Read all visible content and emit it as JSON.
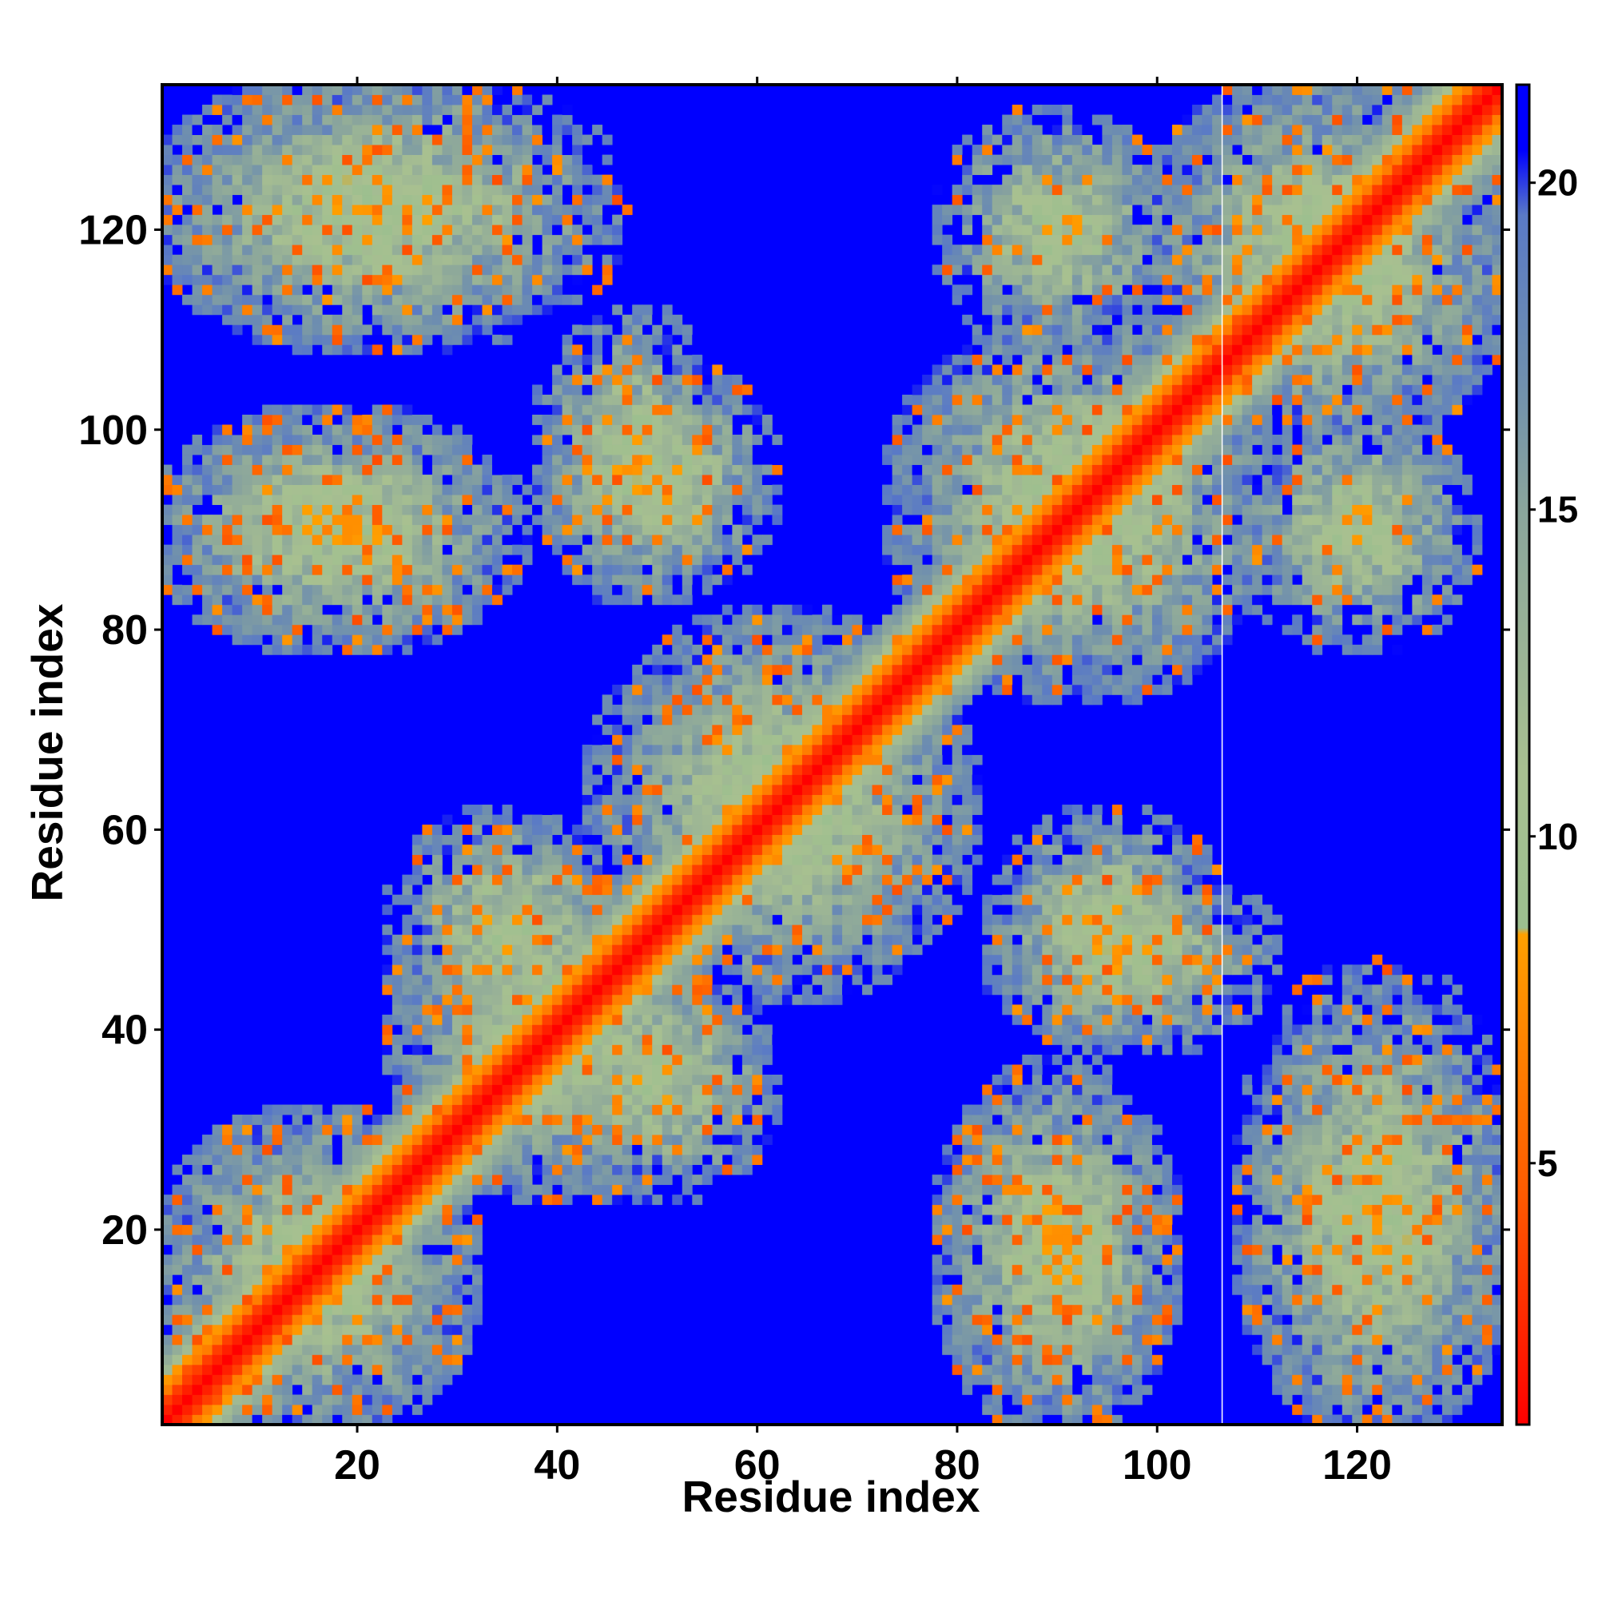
{
  "chart_data": {
    "type": "heatmap",
    "title": "",
    "xlabel": "Residue index",
    "ylabel": "Residue index",
    "n_residues": 134,
    "x_range": [
      1,
      134
    ],
    "y_range": [
      1,
      134
    ],
    "x_ticks": [
      20,
      40,
      60,
      80,
      100,
      120
    ],
    "y_ticks": [
      20,
      40,
      60,
      80,
      100,
      120
    ],
    "x_tick_labels": [
      "20",
      "40",
      "60",
      "80",
      "100",
      "120"
    ],
    "y_tick_labels": [
      "20",
      "40",
      "60",
      "80",
      "100",
      "120"
    ],
    "colorbar": {
      "range": [
        1,
        21.5
      ],
      "ticks": [
        5,
        10,
        15,
        20
      ],
      "tick_labels": [
        "5",
        "10",
        "15",
        "20"
      ],
      "position": "right",
      "stops": [
        {
          "value": 1,
          "color": "#ff0000"
        },
        {
          "value": 4.5,
          "color": "#ff5a00"
        },
        {
          "value": 8.5,
          "color": "#ffa000"
        },
        {
          "value": 8.6,
          "color": "#9cbf8f"
        },
        {
          "value": 11,
          "color": "#a8c090"
        },
        {
          "value": 15,
          "color": "#8aa59c"
        },
        {
          "value": 17,
          "color": "#6f8fae"
        },
        {
          "value": 19.5,
          "color": "#5a7ac6"
        },
        {
          "value": 20.5,
          "color": "#0000ff"
        }
      ]
    },
    "cutoff_value": 21,
    "cutoff_color": "#0000ff",
    "diagonal_band": {
      "core_width": 2,
      "orange_width": 4
    },
    "contact_regions": [
      {
        "x": [
          1,
          30
        ],
        "y": [
          1,
          30
        ]
      },
      {
        "x": [
          25,
          55
        ],
        "y": [
          25,
          55
        ]
      },
      {
        "x": [
          45,
          80
        ],
        "y": [
          45,
          80
        ]
      },
      {
        "x": [
          75,
          110
        ],
        "y": [
          75,
          110
        ]
      },
      {
        "x": [
          100,
          134
        ],
        "y": [
          100,
          134
        ]
      },
      {
        "x": [
          80,
          100
        ],
        "y": [
          1,
          35
        ]
      },
      {
        "x": [
          110,
          134
        ],
        "y": [
          1,
          40
        ]
      },
      {
        "x": [
          1,
          45
        ],
        "y": [
          110,
          134
        ]
      },
      {
        "x": [
          1,
          35
        ],
        "y": [
          80,
          100
        ]
      },
      {
        "x": [
          85,
          110
        ],
        "y": [
          40,
          55
        ]
      },
      {
        "x": [
          40,
          60
        ],
        "y": [
          85,
          105
        ]
      },
      {
        "x": [
          25,
          45
        ],
        "y": [
          40,
          60
        ]
      },
      {
        "x": [
          80,
          100
        ],
        "y": [
          110,
          130
        ]
      }
    ],
    "vertical_line_x": 107,
    "grid": false,
    "legend": "none"
  }
}
